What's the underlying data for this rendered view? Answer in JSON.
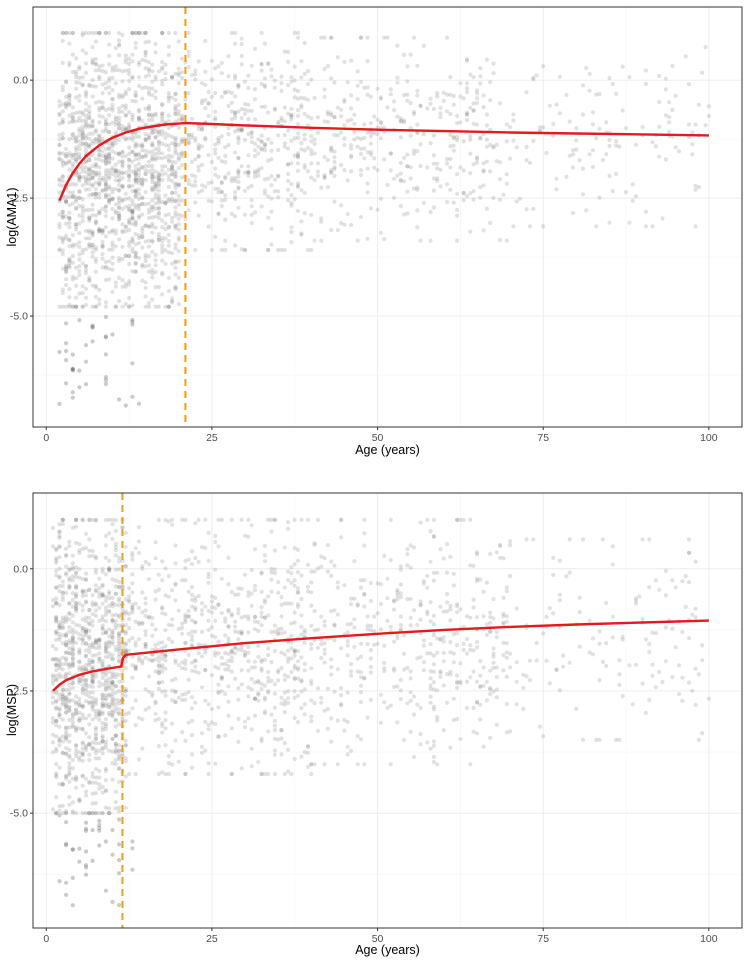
{
  "colors": {
    "points": "#6b6b6b",
    "fit_line": "#e41a1c",
    "cutoff_line": "#f39c12",
    "grid_major": "#ebebeb",
    "grid_minor": "#f5f5f5",
    "panel_border": "#333333"
  },
  "chart_data": [
    {
      "type": "scatter",
      "xlabel": "Age (years)",
      "ylabel": "log(AMA1)",
      "xlim": [
        -2,
        105
      ],
      "ylim": [
        -7.35,
        1.55
      ],
      "x_ticks": [
        0,
        25,
        50,
        75,
        100
      ],
      "x_tick_labels": [
        "0",
        "25",
        "50",
        "75",
        "100"
      ],
      "y_ticks": [
        -5,
        -2.5,
        0
      ],
      "y_tick_labels": [
        "-5.0",
        "-2.5",
        "0.0"
      ],
      "grid": true,
      "legend": "none",
      "cutoff_age": 21,
      "fit": {
        "name": "fit",
        "x": [
          2,
          3,
          4,
          5,
          6,
          8,
          10,
          12,
          14,
          16,
          18,
          20,
          21,
          25,
          30,
          40,
          50,
          60,
          70,
          80,
          90,
          100
        ],
        "y": [
          -2.55,
          -2.22,
          -1.97,
          -1.77,
          -1.61,
          -1.38,
          -1.22,
          -1.11,
          -1.03,
          -0.98,
          -0.94,
          -0.92,
          -0.91,
          -0.93,
          -0.96,
          -1.01,
          -1.05,
          -1.08,
          -1.11,
          -1.13,
          -1.15,
          -1.17
        ]
      },
      "scatter_density": [
        {
          "x_range": [
            2,
            20
          ],
          "y_range": [
            -4.8,
            1.0
          ],
          "n": 1400
        },
        {
          "x_range": [
            20,
            40
          ],
          "y_range": [
            -3.6,
            1.0
          ],
          "n": 450
        },
        {
          "x_range": [
            40,
            70
          ],
          "y_range": [
            -3.4,
            0.9
          ],
          "n": 380
        },
        {
          "x_range": [
            70,
            100
          ],
          "y_range": [
            -3.1,
            0.7
          ],
          "n": 140
        }
      ]
    },
    {
      "type": "scatter",
      "xlabel": "Age (years)",
      "ylabel": "log(MSP)",
      "xlim": [
        -2,
        105
      ],
      "ylim": [
        -7.35,
        1.55
      ],
      "x_ticks": [
        0,
        25,
        50,
        75,
        100
      ],
      "x_tick_labels": [
        "0",
        "25",
        "50",
        "75",
        "100"
      ],
      "y_ticks": [
        -5,
        -2.5,
        0
      ],
      "y_tick_labels": [
        "-5.0",
        "-2.5",
        "0.0"
      ],
      "grid": true,
      "legend": "none",
      "cutoff_age": 11.5,
      "fit": {
        "name": "fit",
        "x": [
          1,
          2,
          3,
          5,
          7,
          9,
          11.3,
          11.6,
          12,
          15,
          20,
          30,
          40,
          50,
          60,
          70,
          80,
          90,
          100
        ],
        "y": [
          -2.5,
          -2.37,
          -2.28,
          -2.17,
          -2.1,
          -2.05,
          -2.0,
          -1.82,
          -1.76,
          -1.72,
          -1.65,
          -1.52,
          -1.42,
          -1.33,
          -1.25,
          -1.19,
          -1.14,
          -1.1,
          -1.06
        ]
      },
      "scatter_density": [
        {
          "x_range": [
            1,
            12
          ],
          "y_range": [
            -5.0,
            1.0
          ],
          "n": 1000
        },
        {
          "x_range": [
            12,
            40
          ],
          "y_range": [
            -4.2,
            1.0
          ],
          "n": 700
        },
        {
          "x_range": [
            40,
            70
          ],
          "y_range": [
            -4.0,
            1.0
          ],
          "n": 450
        },
        {
          "x_range": [
            70,
            100
          ],
          "y_range": [
            -3.5,
            0.6
          ],
          "n": 140
        }
      ]
    }
  ]
}
